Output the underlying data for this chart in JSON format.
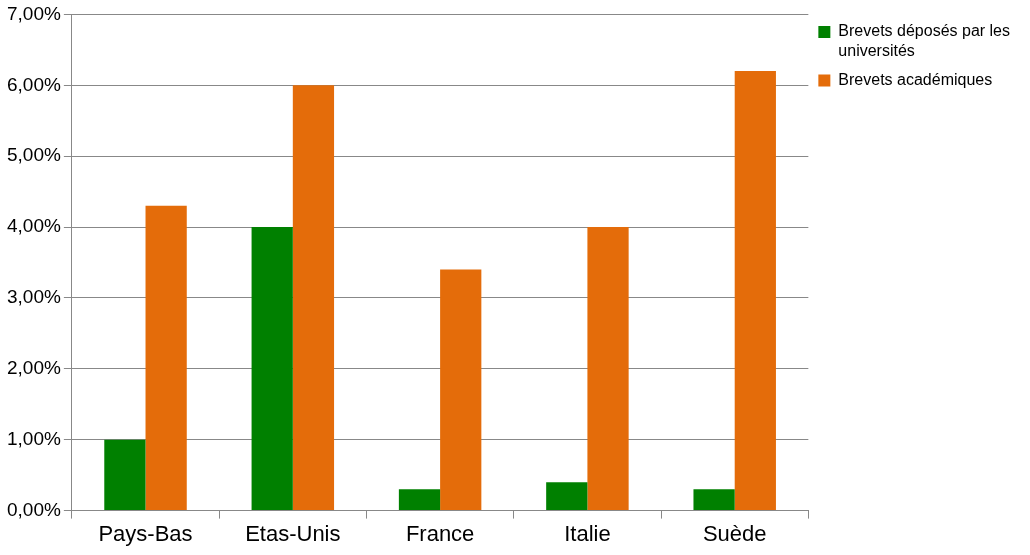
{
  "chart_data": {
    "type": "bar",
    "categories": [
      "Pays-Bas",
      "Etas-Unis",
      "France",
      "Italie",
      "Suède"
    ],
    "series": [
      {
        "name": "Brevets déposés par les universités",
        "color": "#008000",
        "values": [
          1.0,
          4.0,
          0.3,
          0.4,
          0.3
        ]
      },
      {
        "name": "Brevets académiques",
        "color": "#e46c0a",
        "values": [
          4.3,
          6.0,
          3.4,
          4.0,
          6.2
        ]
      }
    ],
    "ylim": [
      0,
      7
    ],
    "yticks": [
      {
        "value": 0,
        "label": "0,00%"
      },
      {
        "value": 1,
        "label": "1,00%"
      },
      {
        "value": 2,
        "label": "2,00%"
      },
      {
        "value": 3,
        "label": "3,00%"
      },
      {
        "value": 4,
        "label": "4,00%"
      },
      {
        "value": 5,
        "label": "5,00%"
      },
      {
        "value": 6,
        "label": "6,00%"
      },
      {
        "value": 7,
        "label": "7,00%"
      }
    ],
    "grid": "y",
    "legend": "right"
  }
}
